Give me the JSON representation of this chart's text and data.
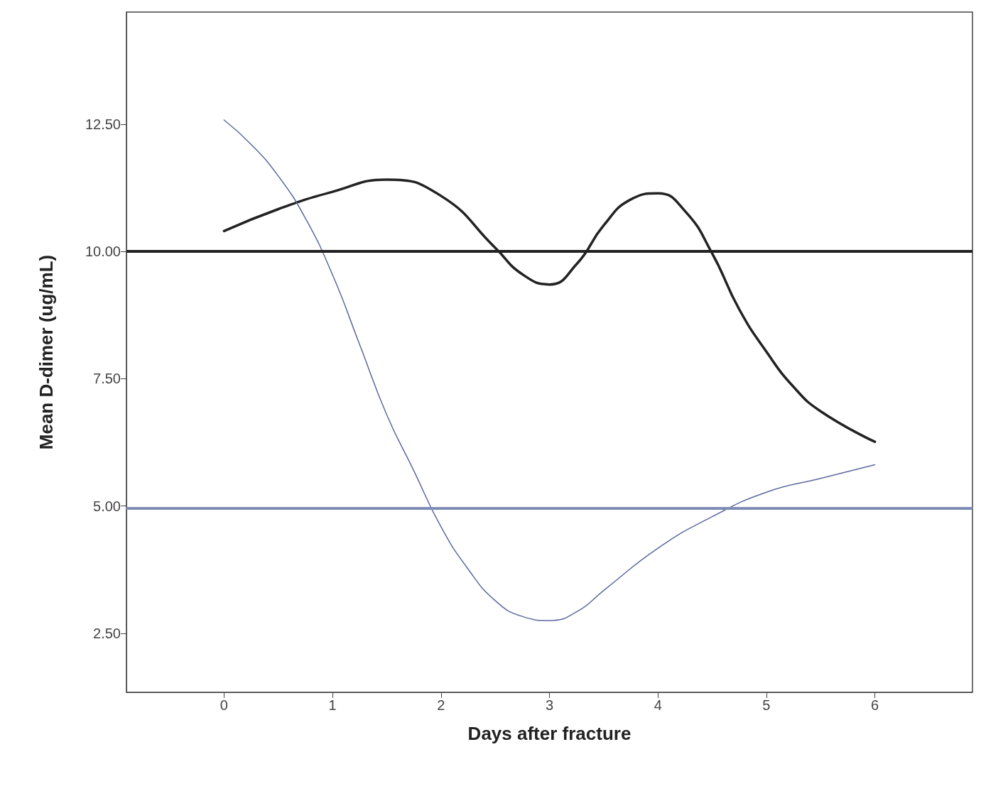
{
  "chart_data": {
    "type": "line",
    "xlabel": "Days after fracture",
    "ylabel": "Mean D-dimer (ug/mL)",
    "xlim": [
      -0.9,
      6.9
    ],
    "ylim": [
      1.34,
      14.7
    ],
    "xticks": [
      0,
      1,
      2,
      3,
      4,
      5,
      6
    ],
    "yticks": [
      {
        "value": 2.5,
        "label": "2.50"
      },
      {
        "value": 5,
        "label": "5.00"
      },
      {
        "value": 7.5,
        "label": "7.50"
      },
      {
        "value": 10,
        "label": "10.00"
      },
      {
        "value": 12.5,
        "label": "12.50"
      }
    ],
    "grid": false,
    "marker": "none",
    "line_style": "solid",
    "series": [
      {
        "color": "#222222",
        "x": [
          0,
          0.5,
          1,
          1.5,
          2,
          2.5,
          2.75,
          3,
          3.25,
          3.5,
          3.75,
          4,
          4.25,
          4.5,
          4.75,
          5,
          5.25,
          5.5,
          6
        ],
        "values": [
          10.4,
          10.83,
          11.17,
          11.41,
          11.09,
          10.07,
          9.55,
          9.35,
          9.75,
          10.51,
          11.02,
          11.14,
          10.79,
          9.96,
          8.86,
          8.03,
          7.34,
          6.86,
          6.26
        ]
      },
      {
        "color": "#5b6a9e",
        "x": [
          0,
          0.25,
          0.5,
          0.75,
          1,
          1.25,
          1.5,
          1.75,
          2,
          2.25,
          2.5,
          2.75,
          3,
          3.25,
          3.5,
          4,
          4.5,
          5,
          5.5,
          6
        ],
        "values": [
          12.58,
          12.1,
          11.48,
          10.65,
          9.54,
          8.17,
          6.79,
          5.69,
          4.59,
          3.76,
          3.14,
          2.83,
          2.75,
          2.92,
          3.34,
          4.17,
          4.79,
          5.27,
          5.54,
          5.81
        ]
      }
    ],
    "ref_lines": [
      {
        "axis": "y",
        "value": 10.0,
        "color": "#222222"
      },
      {
        "axis": "y",
        "value": 4.96,
        "color": "#7f8db5"
      }
    ]
  }
}
